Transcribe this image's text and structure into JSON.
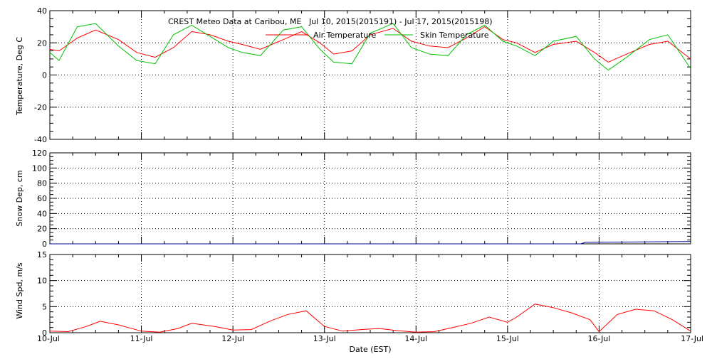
{
  "title": "CREST Meteo Data at Caribou, ME   Jul 10, 2015(2015191) - Jul 17, 2015(2015198)",
  "xlabel": "Date (EST)",
  "x_ticks": [
    "10-Jul",
    "11-Jul",
    "12-Jul",
    "13-Jul",
    "14-Jul",
    "15-Jul",
    "16-Jul",
    "17-Jul"
  ],
  "colors": {
    "air": "#ff0000",
    "skin": "#00c000",
    "snow": "#0000a0",
    "wind": "#ff0000"
  },
  "chart_data": [
    {
      "type": "line",
      "ylabel": "Temperature, Deg C",
      "ylim": [
        -40,
        40
      ],
      "yticks": [
        -40,
        -20,
        0,
        20,
        40
      ],
      "x": [
        "Jul 10",
        "Jul 10",
        "Jul 10",
        "Jul 10",
        "Jul 10",
        "Jul 11",
        "Jul 11",
        "Jul 11",
        "Jul 11",
        "Jul 11",
        "Jul 12",
        "Jul 12",
        "Jul 12",
        "Jul 12",
        "Jul 12",
        "Jul 13",
        "Jul 13",
        "Jul 13",
        "Jul 13",
        "Jul 13",
        "Jul 14",
        "Jul 14",
        "Jul 14",
        "Jul 14",
        "Jul 14",
        "Jul 15",
        "Jul 15",
        "Jul 15",
        "Jul 15",
        "Jul 15",
        "Jul 16",
        "Jul 16",
        "Jul 16",
        "Jul 16",
        "Jul 16",
        "Jul 17"
      ],
      "x_day": [
        0,
        0.1,
        0.3,
        0.5,
        0.75,
        0.95,
        1.15,
        1.35,
        1.55,
        1.75,
        1.95,
        2.1,
        2.3,
        2.55,
        2.75,
        2.95,
        3.1,
        3.3,
        3.5,
        3.75,
        3.95,
        4.15,
        4.35,
        4.55,
        4.75,
        4.95,
        5.1,
        5.3,
        5.5,
        5.75,
        5.95,
        6.1,
        6.3,
        6.55,
        6.75,
        7.0
      ],
      "legend": "top-center",
      "series": [
        {
          "name": "Air Temperature",
          "values": [
            16,
            15,
            23,
            28,
            22,
            14,
            11,
            17,
            27,
            25,
            21,
            19,
            16,
            22,
            27,
            20,
            13,
            15,
            25,
            29,
            21,
            18,
            17,
            23,
            30,
            22,
            20,
            14,
            19,
            21,
            14,
            8,
            13,
            19,
            21,
            10
          ]
        },
        {
          "name": "Skin Temperature",
          "values": [
            14,
            9,
            30,
            32,
            18,
            9,
            7,
            25,
            31,
            24,
            17,
            14,
            12,
            28,
            30,
            16,
            8,
            7,
            26,
            32,
            17,
            13,
            12,
            25,
            31,
            21,
            18,
            12,
            21,
            24,
            10,
            3,
            11,
            22,
            25,
            4
          ]
        }
      ]
    },
    {
      "type": "line",
      "ylabel": "Snow Dep, cm",
      "ylim": [
        0,
        120
      ],
      "yticks": [
        0,
        20,
        40,
        60,
        80,
        100,
        120
      ],
      "x_day": [
        0,
        5.8,
        5.85,
        6.95,
        7.0
      ],
      "series": [
        {
          "values": [
            0,
            0,
            2,
            3,
            3
          ]
        }
      ]
    },
    {
      "type": "line",
      "ylabel": "Wind Spd, m/s",
      "ylim": [
        0,
        15
      ],
      "yticks": [
        0,
        5,
        10,
        15
      ],
      "x_day": [
        0,
        0.2,
        0.4,
        0.55,
        0.75,
        1.0,
        1.2,
        1.4,
        1.55,
        1.8,
        2.0,
        2.2,
        2.4,
        2.6,
        2.8,
        3.0,
        3.2,
        3.4,
        3.6,
        3.8,
        4.0,
        4.2,
        4.4,
        4.6,
        4.8,
        5.0,
        5.1,
        5.3,
        5.5,
        5.7,
        5.9,
        6.0,
        6.2,
        6.4,
        6.6,
        6.8,
        7.0
      ],
      "series": [
        {
          "values": [
            0.3,
            0.2,
            1.2,
            2.2,
            1.5,
            0.3,
            0.1,
            0.8,
            1.8,
            1.2,
            0.5,
            0.6,
            2.2,
            3.5,
            4.2,
            1.2,
            0.3,
            0.6,
            0.8,
            0.4,
            0.1,
            0.2,
            1.0,
            1.8,
            3.0,
            2.0,
            3.0,
            5.5,
            4.8,
            3.8,
            2.5,
            0.2,
            3.5,
            4.5,
            4.2,
            2.5,
            0.3
          ]
        }
      ]
    }
  ]
}
